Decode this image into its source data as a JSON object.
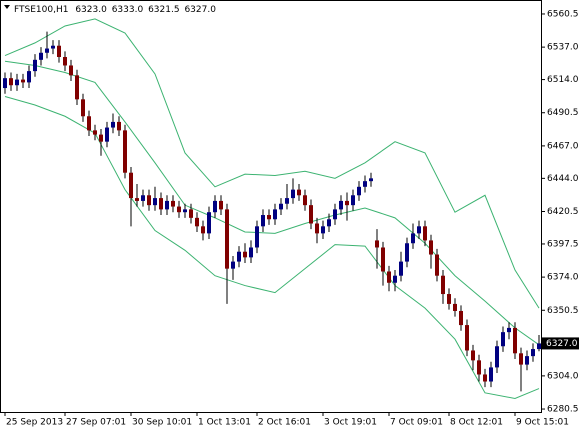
{
  "chart_data": {
    "type": "candlestick",
    "symbol": "FTSE100,H1",
    "header_ohlc": [
      6323,
      6333,
      6321.5,
      6327
    ],
    "header_ohlc_labels": [
      "6323.0",
      "6333.0",
      "6321.5",
      "6327.0"
    ],
    "categories": [
      "25 Sep 2013",
      null,
      null,
      null,
      null,
      null,
      null,
      null,
      null,
      null,
      "27 Sep 07:01",
      null,
      null,
      null,
      null,
      null,
      null,
      null,
      null,
      null,
      null,
      "30 Sep 10:01",
      null,
      null,
      null,
      null,
      null,
      null,
      null,
      null,
      null,
      null,
      "1 Oct 13:01",
      null,
      null,
      null,
      null,
      null,
      null,
      null,
      null,
      null,
      "2 Oct 16:01",
      null,
      null,
      null,
      null,
      null,
      null,
      null,
      null,
      null,
      null,
      "3 Oct 19:01",
      null,
      null,
      null,
      null,
      null,
      null,
      null,
      null,
      null,
      null,
      "7 Oct 09:01",
      null,
      null,
      null,
      null,
      null,
      null,
      null,
      null,
      null,
      "8 Oct 12:01",
      null,
      null,
      null,
      null,
      null,
      null,
      null,
      null,
      null,
      null,
      "9 Oct 15:01",
      null,
      null,
      null,
      null
    ],
    "open": [
      6508,
      6515,
      6510,
      6514,
      6512,
      6520,
      6528,
      6533,
      6536,
      6538,
      6530,
      6524,
      6517,
      6500,
      6488,
      6478,
      6475,
      6470,
      6480,
      6484,
      6478,
      6448,
      6430,
      6428,
      6432,
      6425,
      6430,
      6422,
      6428,
      6424,
      6420,
      6422,
      6416,
      6410,
      6405,
      6420,
      6428,
      6422,
      6380,
      6385,
      6392,
      6388,
      6395,
      6410,
      6418,
      6415,
      6422,
      6426,
      6430,
      6436,
      6432,
      6425,
      6412,
      6405,
      6410,
      6415,
      6422,
      6428,
      6425,
      6432,
      6438,
      6442,
      6400,
      6395,
      6378,
      6370,
      6375,
      6385,
      6398,
      6405,
      6410,
      6400,
      6390,
      6375,
      6362,
      6355,
      6350,
      6340,
      6322,
      6315,
      6305,
      6300,
      6310,
      6325,
      6335,
      6338,
      6320,
      6312,
      6318,
      6323
    ],
    "high": [
      6519,
      6519,
      6518,
      6518,
      6524,
      6532,
      6537,
      6548,
      6542,
      6542,
      6534,
      6528,
      6521,
      6504,
      6492,
      6482,
      6479,
      6484,
      6490,
      6488,
      6482,
      6452,
      6440,
      6436,
      6436,
      6438,
      6434,
      6432,
      6432,
      6428,
      6426,
      6426,
      6420,
      6414,
      6424,
      6432,
      6432,
      6426,
      6389,
      6396,
      6398,
      6400,
      6414,
      6422,
      6422,
      6426,
      6430,
      6440,
      6444,
      6440,
      6436,
      6429,
      6416,
      6414,
      6419,
      6426,
      6432,
      6434,
      6436,
      6442,
      6446,
      6448,
      6408,
      6399,
      6382,
      6379,
      6392,
      6402,
      6412,
      6414,
      6414,
      6404,
      6394,
      6379,
      6366,
      6359,
      6354,
      6344,
      6326,
      6319,
      6309,
      6314,
      6329,
      6339,
      6342,
      6342,
      6324,
      6322,
      6327,
      6333
    ],
    "low": [
      6504,
      6506,
      6506,
      6508,
      6508,
      6516,
      6524,
      6529,
      6532,
      6526,
      6520,
      6513,
      6496,
      6484,
      6474,
      6471,
      6460,
      6466,
      6476,
      6474,
      6444,
      6410,
      6424,
      6424,
      6421,
      6421,
      6418,
      6418,
      6420,
      6416,
      6416,
      6412,
      6406,
      6400,
      6401,
      6416,
      6418,
      6355,
      6372,
      6381,
      6384,
      6384,
      6391,
      6406,
      6411,
      6411,
      6418,
      6422,
      6426,
      6428,
      6421,
      6408,
      6398,
      6401,
      6406,
      6411,
      6418,
      6414,
      6421,
      6428,
      6434,
      6438,
      6380,
      6368,
      6364,
      6364,
      6371,
      6381,
      6394,
      6401,
      6396,
      6380,
      6371,
      6355,
      6351,
      6346,
      6336,
      6318,
      6308,
      6300,
      6296,
      6296,
      6306,
      6321,
      6330,
      6316,
      6293,
      6308,
      6314,
      6321.5
    ],
    "close": [
      6515,
      6510,
      6514,
      6512,
      6520,
      6528,
      6533,
      6536,
      6538,
      6530,
      6524,
      6517,
      6500,
      6488,
      6478,
      6475,
      6470,
      6480,
      6484,
      6478,
      6448,
      6430,
      6428,
      6432,
      6425,
      6430,
      6422,
      6428,
      6424,
      6420,
      6422,
      6416,
      6410,
      6405,
      6420,
      6428,
      6422,
      6380,
      6385,
      6392,
      6388,
      6395,
      6410,
      6418,
      6415,
      6422,
      6426,
      6430,
      6436,
      6432,
      6425,
      6412,
      6405,
      6410,
      6415,
      6422,
      6428,
      6425,
      6432,
      6438,
      6442,
      6444,
      6395,
      6378,
      6370,
      6375,
      6385,
      6398,
      6405,
      6410,
      6400,
      6390,
      6375,
      6362,
      6355,
      6350,
      6340,
      6322,
      6315,
      6305,
      6300,
      6310,
      6325,
      6335,
      6338,
      6320,
      6312,
      6318,
      6323,
      6327
    ],
    "up_color": "#000080",
    "down_color": "#800000",
    "band_color": "#3cb371",
    "band_x": [
      0,
      5,
      10,
      15,
      20,
      25,
      30,
      35,
      40,
      45,
      50,
      55,
      60,
      65,
      70,
      75,
      80,
      85,
      89
    ],
    "band_lines": [
      {
        "values": [
          6531,
          6540,
          6552,
          6557,
          6547,
          6518,
          6462,
          6438,
          6447,
          6446,
          6449,
          6444,
          6455,
          6470,
          6462,
          6420,
          6432,
          6379,
          6352
        ]
      },
      {
        "values": [
          6527,
          6524,
          6519,
          6512,
          6484,
          6455,
          6425,
          6416,
          6406,
          6405,
          6412,
          6418,
          6423,
          6416,
          6398,
          6375,
          6357,
          6338,
          6326
        ]
      },
      {
        "values": [
          6502,
          6496,
          6488,
          6476,
          6436,
          6407,
          6393,
          6375,
          6368,
          6363,
          6380,
          6397,
          6396,
          6368,
          6352,
          6330,
          6292,
          6288,
          6295
        ]
      }
    ],
    "current_price": 6327,
    "current_price_label": "6327.0",
    "ylim": [
      6278.4,
      6570.4
    ],
    "yticks": [
      6560.5,
      {
        "value": 6537,
        "label": "6537.0"
      },
      {
        "value": 6514,
        "label": "6514.0"
      },
      6490.5,
      {
        "value": 6467,
        "label": "6467.0"
      },
      {
        "value": 6444,
        "label": "6444.0"
      },
      6420.5,
      6397.5,
      {
        "value": 6374,
        "label": "6374.0"
      },
      6350.5,
      {
        "value": 6327,
        "label": "6327.0"
      },
      {
        "value": 6304,
        "label": "6304.0"
      },
      6280.5
    ]
  }
}
